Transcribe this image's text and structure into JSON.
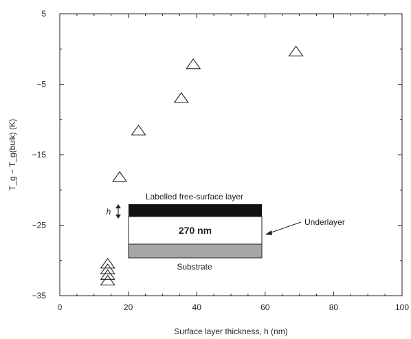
{
  "chart_data": {
    "type": "scatter",
    "title": "",
    "xlabel": "Surface layer thickness, h (nm)",
    "ylabel": "T_g − T_g(bulk) (K)",
    "xlim": [
      0,
      100
    ],
    "ylim": [
      -35,
      5
    ],
    "x_ticks": [
      0,
      20,
      40,
      60,
      80,
      100
    ],
    "y_ticks": [
      5,
      -5,
      -15,
      -25,
      -35
    ],
    "grid": false,
    "marker": "open-triangle",
    "series": [
      {
        "points": [
          {
            "x": 14,
            "y": -30.5
          },
          {
            "x": 14,
            "y": -31.3
          },
          {
            "x": 14,
            "y": -32.1
          },
          {
            "x": 14,
            "y": -32.9
          },
          {
            "x": 17.5,
            "y": -18.2
          },
          {
            "x": 23,
            "y": -11.6
          },
          {
            "x": 35.5,
            "y": -7.0
          },
          {
            "x": 39,
            "y": -2.2
          },
          {
            "x": 69,
            "y": -0.4
          }
        ]
      }
    ],
    "inset": {
      "top_label": "Labelled free-surface layer",
      "thickness_symbol": "h",
      "middle_label": "270 nm",
      "bottom_label": "Substrate",
      "pointer_label": "Underlayer"
    }
  }
}
